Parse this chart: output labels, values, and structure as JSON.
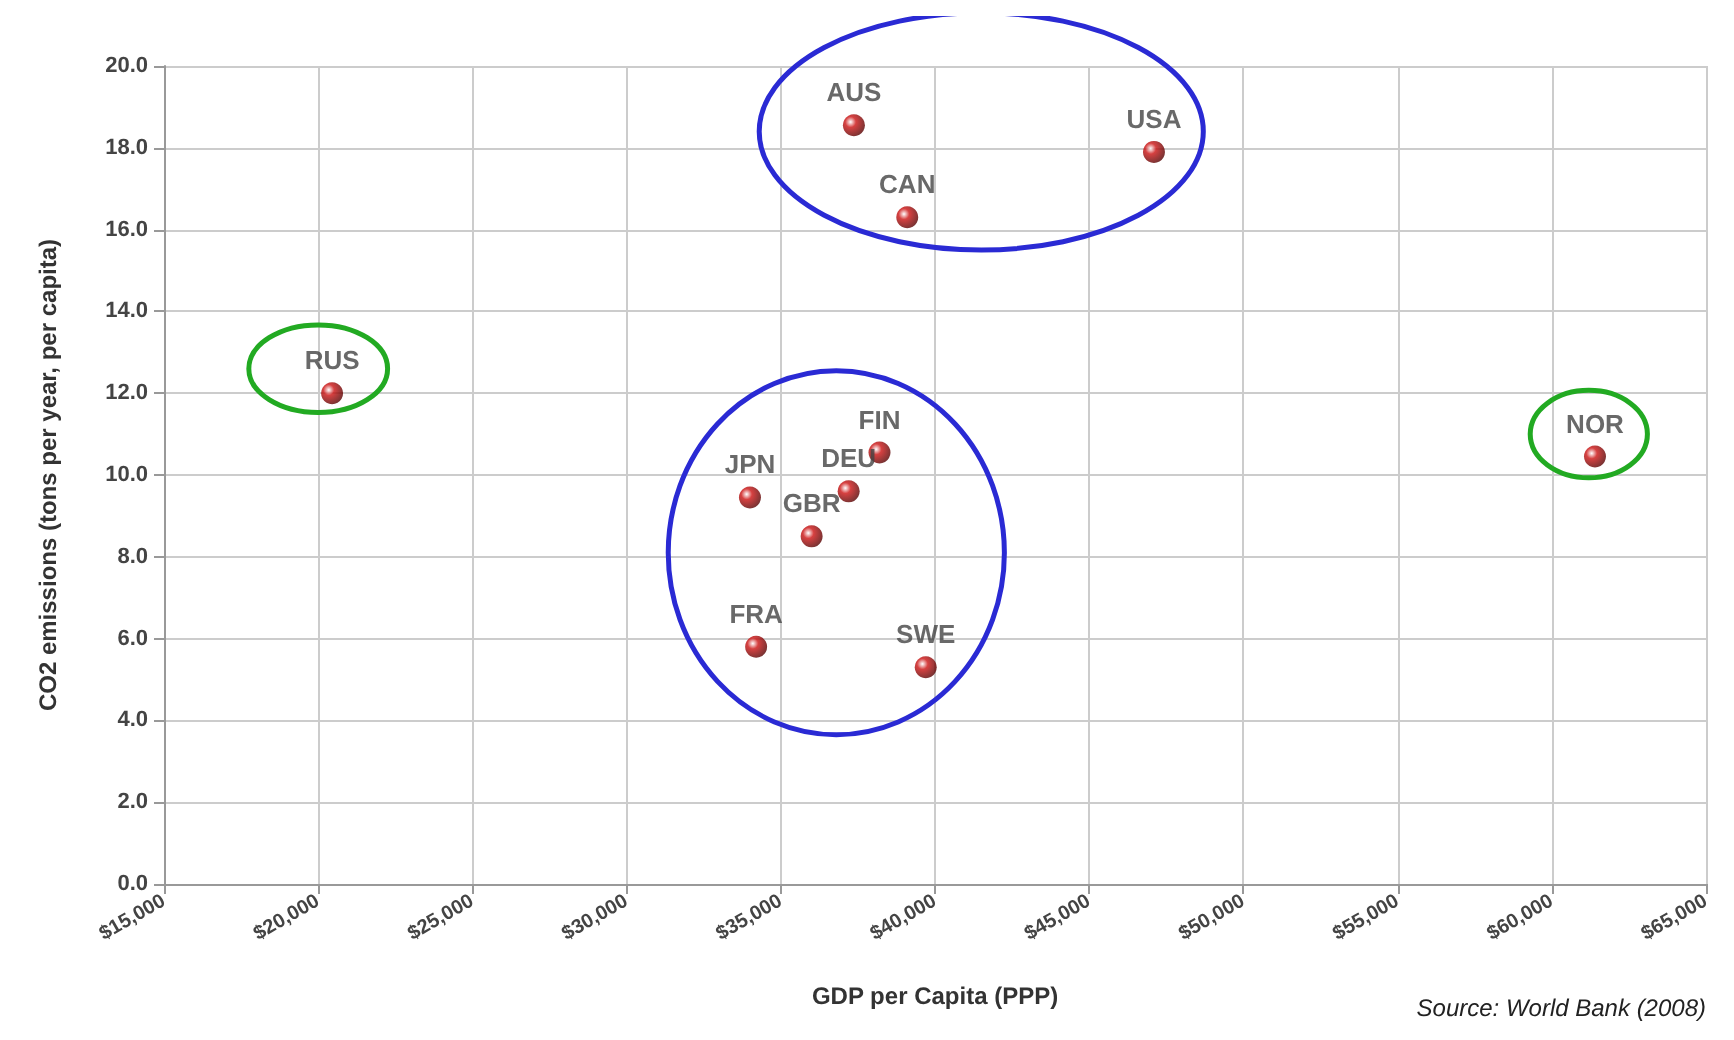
{
  "chart_data": {
    "type": "scatter",
    "xlabel": "GDP per Capita (PPP)",
    "ylabel": "CO2 emissions (tons per year, per capita)",
    "x": [
      20450,
      37370,
      47100,
      39100,
      38200,
      37200,
      34000,
      36000,
      34200,
      39700,
      61400
    ],
    "series": [
      {
        "color": "#cc1111",
        "values": [
          12.0,
          18.55,
          17.9,
          16.3,
          10.55,
          9.6,
          9.45,
          8.5,
          5.8,
          5.3,
          10.45
        ]
      }
    ],
    "annotations": [
      {
        "text": "RUS",
        "x": 20450,
        "y": 12.0
      },
      {
        "text": "AUS",
        "x": 37370,
        "y": 18.55
      },
      {
        "text": "USA",
        "x": 47100,
        "y": 17.9
      },
      {
        "text": "CAN",
        "x": 39100,
        "y": 16.3
      },
      {
        "text": "FIN",
        "x": 38200,
        "y": 10.55
      },
      {
        "text": "DEU",
        "x": 37200,
        "y": 9.6
      },
      {
        "text": "JPN",
        "x": 34000,
        "y": 9.45
      },
      {
        "text": "GBR",
        "x": 36000,
        "y": 8.5
      },
      {
        "text": "FRA",
        "x": 34200,
        "y": 5.8
      },
      {
        "text": "SWE",
        "x": 39700,
        "y": 5.3
      },
      {
        "text": "NOR",
        "x": 61400,
        "y": 10.45
      },
      "Source: World Bank (2008)"
    ],
    "xlim": [
      15000,
      65000
    ],
    "xticks": [
      {
        "value": 15000,
        "label": "$15,000"
      },
      {
        "value": 20000,
        "label": "$20,000"
      },
      {
        "value": 25000,
        "label": "$25,000"
      },
      {
        "value": 30000,
        "label": "$30,000"
      },
      {
        "value": 35000,
        "label": "$35,000"
      },
      {
        "value": 40000,
        "label": "$40,000"
      },
      {
        "value": 45000,
        "label": "$45,000"
      },
      {
        "value": 50000,
        "label": "$50,000"
      },
      {
        "value": 55000,
        "label": "$55,000"
      },
      {
        "value": 60000,
        "label": "$60,000"
      },
      {
        "value": 65000,
        "label": "$65,000"
      }
    ],
    "ylim": [
      0,
      20
    ],
    "yticks": [
      {
        "value": 0,
        "label": "0.0"
      },
      {
        "value": 2,
        "label": "2.0"
      },
      {
        "value": 4,
        "label": "4.0"
      },
      {
        "value": 6,
        "label": "6.0"
      },
      {
        "value": 8,
        "label": "8.0"
      },
      {
        "value": 10,
        "label": "10.0"
      },
      {
        "value": 12,
        "label": "12.0"
      },
      {
        "value": 14,
        "label": "14.0"
      },
      {
        "value": 16,
        "label": "16.0"
      },
      {
        "value": 18,
        "label": "18.0"
      },
      {
        "value": 20,
        "label": "20.0"
      }
    ],
    "grid": true,
    "marker": "circle"
  }
}
